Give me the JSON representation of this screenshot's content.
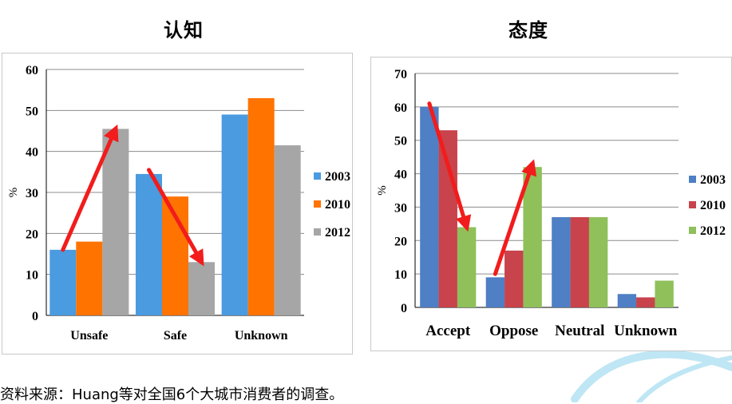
{
  "colors": {
    "swirl": "#bfe6f4",
    "left_series": [
      "#4a9be0",
      "#ff7300",
      "#a6a6a6"
    ],
    "right_series": [
      "#4f7fc4",
      "#c8434b",
      "#8fc05a"
    ],
    "arrow": "#f21c1c",
    "grid": "#8c8c8c"
  },
  "source_note": "资料来源：Huang等对全国6个大城市消费者的调查。",
  "chart_data": [
    {
      "type": "bar",
      "title": "认知",
      "ylabel": "%",
      "ylim": [
        0,
        60
      ],
      "yticks": [
        0,
        10,
        20,
        30,
        40,
        50,
        60
      ],
      "grid": true,
      "legend_position": "right",
      "categories": [
        "Unsafe",
        "Safe",
        "Unknown"
      ],
      "series": [
        {
          "name": "2003",
          "values": [
            16,
            34.5,
            49
          ]
        },
        {
          "name": "2010",
          "values": [
            18,
            29,
            53
          ]
        },
        {
          "name": "2012",
          "values": [
            45.5,
            13,
            41.5
          ]
        }
      ],
      "annotations": [
        {
          "type": "arrow",
          "from": {
            "category": "Unsafe",
            "series": "2003",
            "value": 16
          },
          "to": {
            "category": "Unsafe",
            "series": "2012",
            "value": 45.5
          }
        },
        {
          "type": "arrow",
          "from": {
            "category": "Safe",
            "series": "2003",
            "value": 35.5
          },
          "to": {
            "category": "Safe",
            "series": "2012",
            "value": 13
          }
        }
      ]
    },
    {
      "type": "bar",
      "title": "态度",
      "ylabel": "%",
      "ylim": [
        0,
        70
      ],
      "yticks": [
        0,
        10,
        20,
        30,
        40,
        50,
        60,
        70
      ],
      "grid": true,
      "legend_position": "right",
      "categories": [
        "Accept",
        "Oppose",
        "Neutral",
        "Unknown"
      ],
      "series": [
        {
          "name": "2003",
          "values": [
            60,
            9,
            27,
            4
          ]
        },
        {
          "name": "2010",
          "values": [
            53,
            17,
            27,
            3
          ]
        },
        {
          "name": "2012",
          "values": [
            24,
            42,
            27,
            8
          ]
        }
      ],
      "annotations": [
        {
          "type": "arrow",
          "from": {
            "category": "Accept",
            "series": "2003",
            "value": 61
          },
          "to": {
            "category": "Accept",
            "series": "2012",
            "value": 24
          }
        },
        {
          "type": "arrow",
          "from": {
            "category": "Oppose",
            "series": "2003",
            "value": 10
          },
          "to": {
            "category": "Oppose",
            "series": "2012",
            "value": 43
          }
        }
      ]
    }
  ]
}
